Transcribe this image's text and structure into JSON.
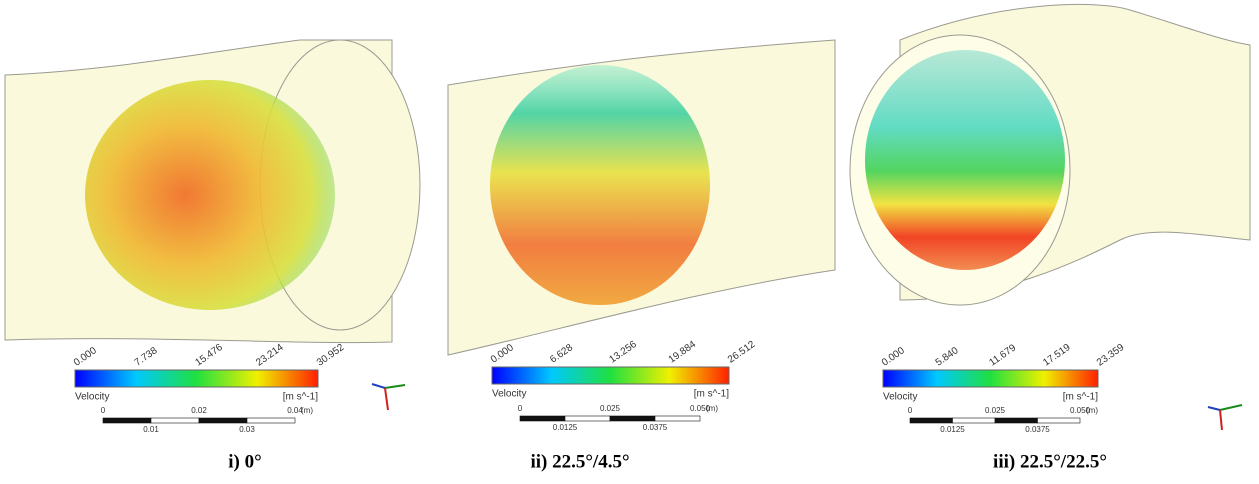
{
  "panels": [
    {
      "caption": "i) 0°",
      "legend": {
        "title": "Velocity",
        "unit": "[m s^-1]",
        "ticks": [
          "0.000",
          "7.738",
          "15.476",
          "23.214",
          "30.952"
        ]
      },
      "scale": {
        "top": [
          "0",
          "0.02",
          "0.04"
        ],
        "unit": "(m)",
        "bottom": [
          "0.01",
          "0.03"
        ]
      }
    },
    {
      "caption": "ii) 22.5°/4.5°",
      "legend": {
        "title": "Velocity",
        "unit": "[m s^-1]",
        "ticks": [
          "0.000",
          "6.628",
          "13.256",
          "19.884",
          "26.512"
        ]
      },
      "scale": {
        "top": [
          "0",
          "0.025",
          "0.050"
        ],
        "unit": "(m)",
        "bottom": [
          "0.0125",
          "0.0375"
        ]
      }
    },
    {
      "caption": "iii) 22.5°/22.5°",
      "legend": {
        "title": "Velocity",
        "unit": "[m s^-1]",
        "ticks": [
          "0.000",
          "5.840",
          "11.679",
          "17.519",
          "23.359"
        ]
      },
      "scale": {
        "top": [
          "0",
          "0.025",
          "0.050"
        ],
        "unit": "(m)",
        "bottom": [
          "0.0125",
          "0.0375"
        ]
      }
    }
  ]
}
